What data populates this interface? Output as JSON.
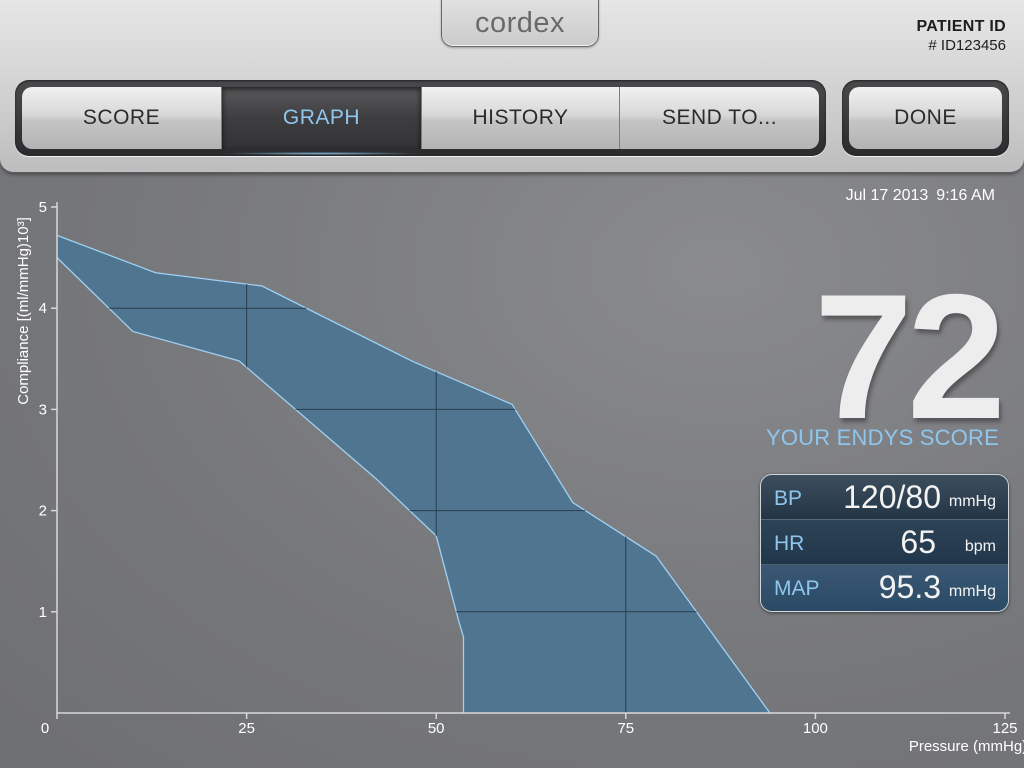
{
  "header": {
    "logo_text": "cordex",
    "patient_label": "PATIENT ID",
    "patient_id": "# ID123456"
  },
  "tabs": [
    {
      "label": "SCORE",
      "active": false
    },
    {
      "label": "GRAPH",
      "active": true
    },
    {
      "label": "HISTORY",
      "active": false
    },
    {
      "label": "SEND TO...",
      "active": false
    }
  ],
  "done_label": "DONE",
  "datetime": {
    "date": "Jul 17 2013",
    "time": "9:16 AM"
  },
  "score": {
    "value": "72",
    "label": "YOUR ENDYS SCORE"
  },
  "vitals": [
    {
      "name": "BP",
      "value": "120/80",
      "unit": "mmHg"
    },
    {
      "name": "HR",
      "value": "65",
      "unit": "bpm"
    },
    {
      "name": "MAP",
      "value": "95.3",
      "unit": "mmHg"
    }
  ],
  "colors": {
    "accent": "#8ec6ee",
    "band_fill": "#4f7590",
    "band_edge": "#9fd0f2"
  },
  "chart_data": {
    "type": "area",
    "xlabel": "Pressure (mmHg)",
    "ylabel": "Compliance [(ml/mmHg)10³]",
    "xlim": [
      0,
      125
    ],
    "ylim": [
      0,
      5
    ],
    "xticks": [
      0,
      25,
      50,
      75,
      100,
      125
    ],
    "yticks": [
      1,
      2,
      3,
      4,
      5
    ],
    "upper": {
      "x": [
        0,
        13,
        27,
        47,
        60,
        68,
        79,
        94
      ],
      "y": [
        4.72,
        4.35,
        4.22,
        3.47,
        3.05,
        2.08,
        1.55,
        0
      ]
    },
    "lower": {
      "x": [
        0,
        10,
        24,
        42,
        50,
        53,
        53.6,
        53.6
      ],
      "y": [
        4.5,
        3.77,
        3.48,
        2.32,
        1.75,
        0.9,
        0.75,
        0
      ]
    },
    "inner_grid_x": [
      25,
      50,
      75
    ],
    "inner_grid_y": [
      1,
      2,
      3,
      4
    ]
  }
}
